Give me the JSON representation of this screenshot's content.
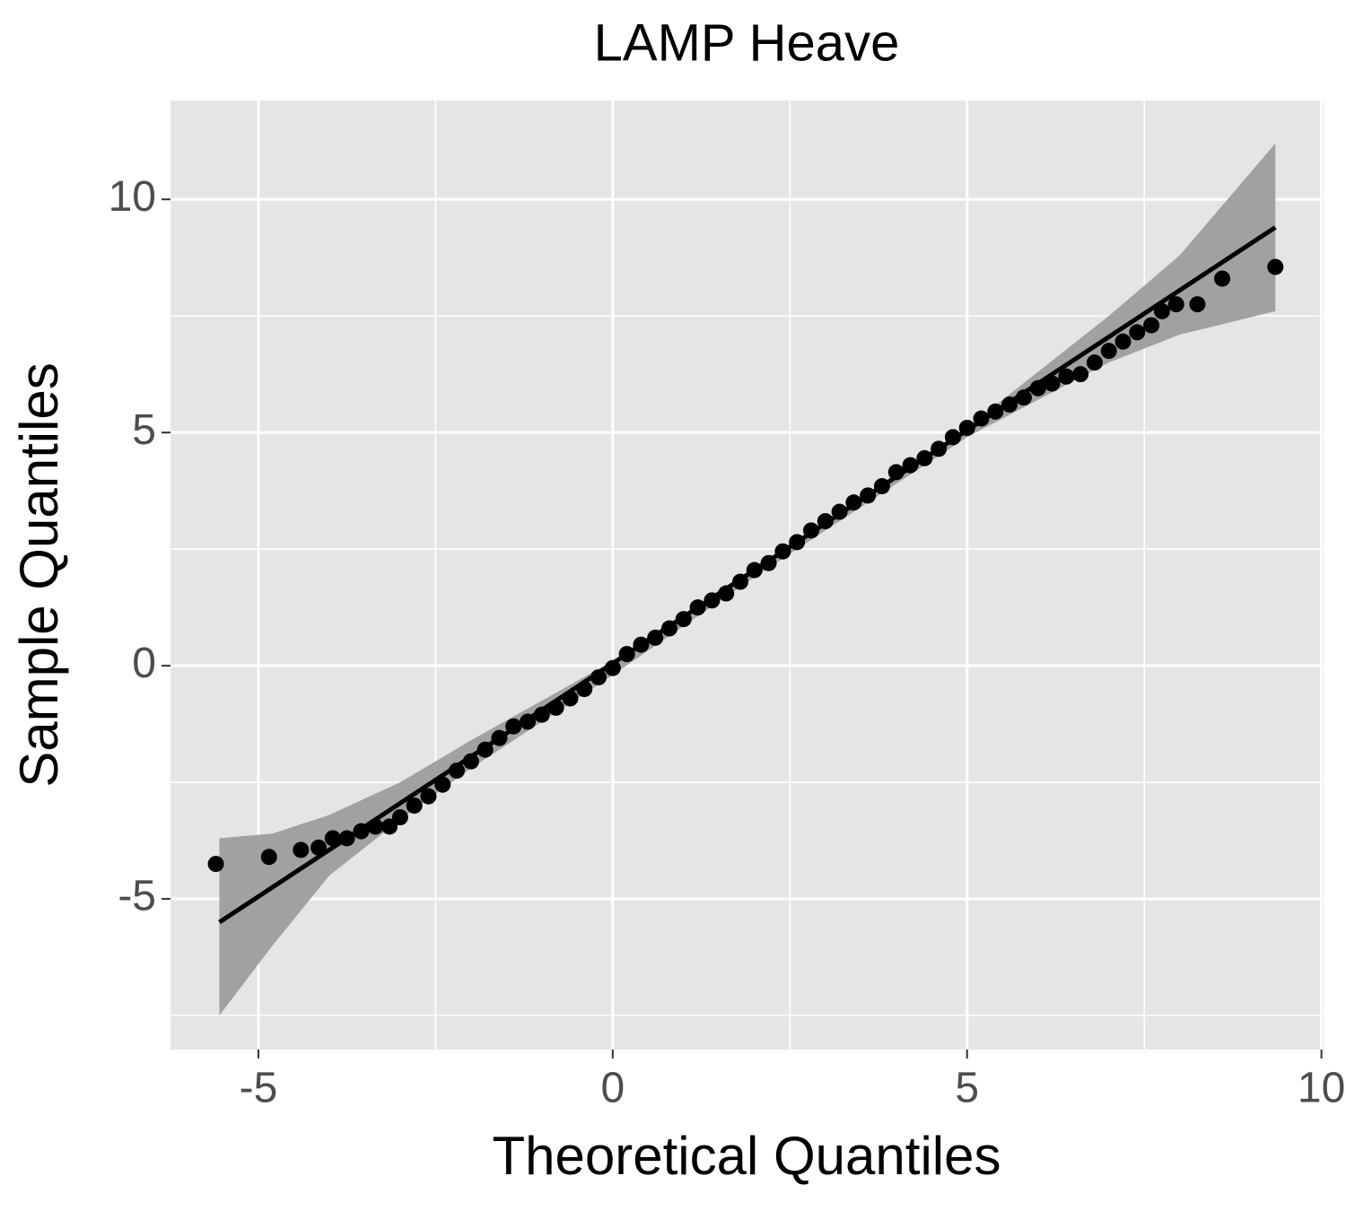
{
  "chart_data": {
    "type": "qq",
    "title": "LAMP Heave",
    "x_label": "Theoretical Quantiles",
    "y_label": "Sample Quantiles",
    "xlim": [
      -6.24,
      10.03
    ],
    "ylim": [
      -8.23,
      12.12
    ],
    "xticks": [
      -5,
      0,
      5,
      10
    ],
    "yticks": [
      -5,
      0,
      5,
      10
    ],
    "grid": true,
    "point_color": "#000000",
    "band_color": "#999999",
    "line_color": "#000000",
    "x": [
      -5.6,
      -4.85,
      -4.4,
      -4.15,
      -3.95,
      -3.75,
      -3.55,
      -3.35,
      -3.15,
      -3.0,
      -2.8,
      -2.6,
      -2.4,
      -2.2,
      -2.0,
      -1.8,
      -1.6,
      -1.4,
      -1.2,
      -1.0,
      -0.8,
      -0.6,
      -0.4,
      -0.2,
      0,
      0.2,
      0.4,
      0.6,
      0.8,
      1.0,
      1.2,
      1.4,
      1.6,
      1.8,
      2.0,
      2.2,
      2.4,
      2.6,
      2.8,
      3.0,
      3.2,
      3.4,
      3.6,
      3.8,
      4.0,
      4.2,
      4.4,
      4.6,
      4.8,
      5.0,
      5.2,
      5.4,
      5.6,
      5.8,
      6.0,
      6.2,
      6.4,
      6.6,
      6.8,
      7.0,
      7.2,
      7.4,
      7.6,
      7.75,
      7.95,
      8.25,
      8.6,
      9.35
    ],
    "y": [
      -4.25,
      -4.1,
      -3.95,
      -3.9,
      -3.7,
      -3.7,
      -3.55,
      -3.45,
      -3.45,
      -3.25,
      -3.0,
      -2.8,
      -2.55,
      -2.25,
      -2.05,
      -1.8,
      -1.55,
      -1.3,
      -1.2,
      -1.05,
      -0.9,
      -0.7,
      -0.5,
      -0.25,
      -0.05,
      0.25,
      0.45,
      0.6,
      0.8,
      1.0,
      1.25,
      1.4,
      1.55,
      1.8,
      2.05,
      2.2,
      2.45,
      2.65,
      2.9,
      3.1,
      3.3,
      3.5,
      3.65,
      3.85,
      4.15,
      4.3,
      4.45,
      4.65,
      4.9,
      5.1,
      5.3,
      5.45,
      5.6,
      5.75,
      5.95,
      6.05,
      6.2,
      6.25,
      6.5,
      6.75,
      6.95,
      7.15,
      7.3,
      7.6,
      7.75,
      7.75,
      8.3,
      8.55
    ],
    "band": {
      "x": [
        -5.55,
        -4.8,
        -4,
        -3,
        -2,
        0,
        2,
        4,
        5,
        6,
        7,
        8,
        9.35
      ],
      "upper": [
        -3.7,
        -3.6,
        -3.2,
        -2.5,
        -1.6,
        0.1,
        2.1,
        4.1,
        5.1,
        6.3,
        7.5,
        8.8,
        11.2
      ],
      "lower": [
        -7.5,
        -6.0,
        -4.5,
        -3.3,
        -2.2,
        -0.2,
        1.9,
        3.9,
        4.9,
        5.7,
        6.5,
        7.1,
        7.6
      ]
    },
    "line": {
      "x": [
        -5.55,
        9.35
      ],
      "y": [
        -5.5,
        9.4
      ]
    }
  }
}
